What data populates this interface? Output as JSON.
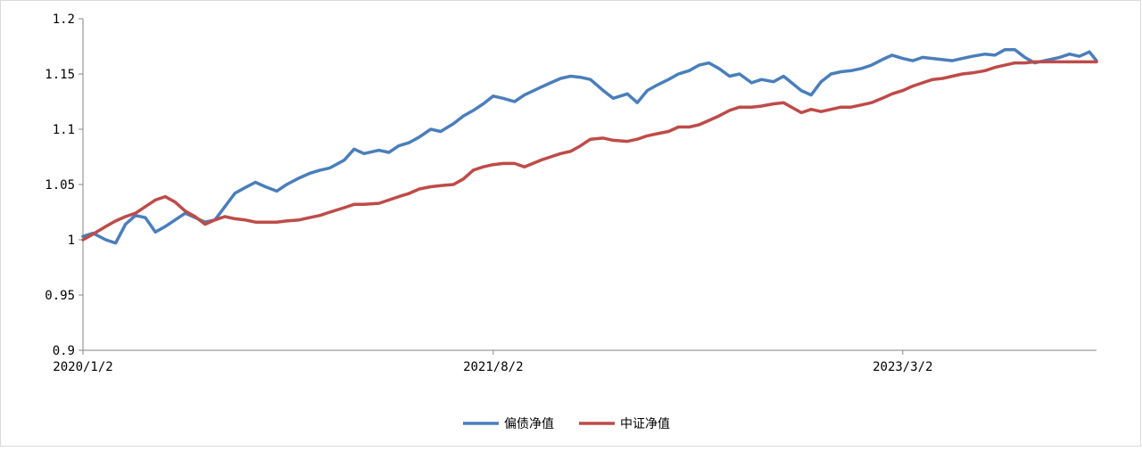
{
  "chart_data": {
    "type": "line",
    "title": "",
    "xlabel": "",
    "ylabel": "",
    "ylim": [
      0.9,
      1.2
    ],
    "y_ticks": [
      0.9,
      0.95,
      1,
      1.05,
      1.1,
      1.15,
      1.2
    ],
    "y_tick_labels": [
      "0.9",
      "0.95",
      "1",
      "1.05",
      "1.1",
      "1.15",
      "1.2"
    ],
    "x_tick_labels": [
      "2020/1/2",
      "2021/8/2",
      "2023/3/2"
    ],
    "x_range": [
      "2020/1/2",
      "2023/11/30"
    ],
    "grid": false,
    "legend_position": "bottom",
    "series": [
      {
        "name": "偏债净值",
        "color": "#4a7ebb",
        "x": [
          "2020/1/2",
          "2020/1/16",
          "2020/2/3",
          "2020/2/17",
          "2020/3/2",
          "2020/3/16",
          "2020/3/30",
          "2020/4/13",
          "2020/4/27",
          "2020/5/11",
          "2020/5/25",
          "2020/6/8",
          "2020/6/22",
          "2020/7/6",
          "2020/7/20",
          "2020/8/3",
          "2020/8/17",
          "2020/9/1",
          "2020/9/15",
          "2020/10/1",
          "2020/10/15",
          "2020/11/2",
          "2020/11/16",
          "2020/12/1",
          "2020/12/15",
          "2021/1/4",
          "2021/1/18",
          "2021/2/1",
          "2021/2/22",
          "2021/3/8",
          "2021/3/22",
          "2021/4/6",
          "2021/4/20",
          "2021/5/6",
          "2021/5/20",
          "2021/6/7",
          "2021/6/21",
          "2021/7/5",
          "2021/7/19",
          "2021/8/2",
          "2021/8/16",
          "2021/9/1",
          "2021/9/15",
          "2021/10/8",
          "2021/10/22",
          "2021/11/5",
          "2021/11/19",
          "2021/12/3",
          "2021/12/17",
          "2022/1/4",
          "2022/1/18",
          "2022/2/7",
          "2022/2/21",
          "2022/3/7",
          "2022/3/21",
          "2022/4/6",
          "2022/4/20",
          "2022/5/5",
          "2022/5/19",
          "2022/6/2",
          "2022/6/16",
          "2022/7/1",
          "2022/7/15",
          "2022/8/1",
          "2022/8/15",
          "2022/9/1",
          "2022/9/15",
          "2022/10/10",
          "2022/10/24",
          "2022/11/7",
          "2022/11/21",
          "2022/12/5",
          "2022/12/19",
          "2023/1/3",
          "2023/1/17",
          "2023/2/1",
          "2023/2/15",
          "2023/3/2",
          "2023/3/16",
          "2023/3/30",
          "2023/4/13",
          "2023/4/27",
          "2023/5/11",
          "2023/5/25",
          "2023/6/8",
          "2023/6/26",
          "2023/7/10",
          "2023/7/24",
          "2023/8/7",
          "2023/8/21",
          "2023/9/4",
          "2023/9/18",
          "2023/10/9",
          "2023/10/23",
          "2023/11/6",
          "2023/11/20",
          "2023/11/30"
        ],
        "values": [
          1.003,
          1.006,
          1.0,
          0.997,
          1.014,
          1.022,
          1.02,
          1.007,
          1.012,
          1.018,
          1.024,
          1.02,
          1.016,
          1.018,
          1.03,
          1.042,
          1.047,
          1.052,
          1.048,
          1.044,
          1.05,
          1.056,
          1.06,
          1.063,
          1.065,
          1.072,
          1.082,
          1.078,
          1.081,
          1.079,
          1.085,
          1.088,
          1.093,
          1.1,
          1.098,
          1.105,
          1.112,
          1.117,
          1.123,
          1.13,
          1.128,
          1.125,
          1.131,
          1.138,
          1.142,
          1.146,
          1.148,
          1.147,
          1.145,
          1.135,
          1.128,
          1.132,
          1.124,
          1.135,
          1.14,
          1.145,
          1.15,
          1.153,
          1.158,
          1.16,
          1.155,
          1.148,
          1.15,
          1.142,
          1.145,
          1.143,
          1.148,
          1.135,
          1.131,
          1.143,
          1.15,
          1.152,
          1.153,
          1.155,
          1.158,
          1.163,
          1.167,
          1.164,
          1.162,
          1.165,
          1.164,
          1.163,
          1.162,
          1.164,
          1.166,
          1.168,
          1.167,
          1.172,
          1.172,
          1.165,
          1.16,
          1.162,
          1.165,
          1.168,
          1.166,
          1.17,
          1.162
        ]
      },
      {
        "name": "中证净值",
        "color": "#be4b48",
        "x": [
          "2020/1/2",
          "2020/1/16",
          "2020/2/3",
          "2020/2/17",
          "2020/3/2",
          "2020/3/16",
          "2020/3/30",
          "2020/4/13",
          "2020/4/27",
          "2020/5/11",
          "2020/5/25",
          "2020/6/8",
          "2020/6/22",
          "2020/7/6",
          "2020/7/20",
          "2020/8/3",
          "2020/8/17",
          "2020/9/1",
          "2020/9/15",
          "2020/10/1",
          "2020/10/15",
          "2020/11/2",
          "2020/11/16",
          "2020/12/1",
          "2020/12/15",
          "2021/1/4",
          "2021/1/18",
          "2021/2/1",
          "2021/2/22",
          "2021/3/8",
          "2021/3/22",
          "2021/4/6",
          "2021/4/20",
          "2021/5/6",
          "2021/5/20",
          "2021/6/7",
          "2021/6/21",
          "2021/7/5",
          "2021/7/19",
          "2021/8/2",
          "2021/8/16",
          "2021/9/1",
          "2021/9/15",
          "2021/10/8",
          "2021/10/22",
          "2021/11/5",
          "2021/11/19",
          "2021/12/3",
          "2021/12/17",
          "2022/1/4",
          "2022/1/18",
          "2022/2/7",
          "2022/2/21",
          "2022/3/7",
          "2022/3/21",
          "2022/4/6",
          "2022/4/20",
          "2022/5/5",
          "2022/5/19",
          "2022/6/2",
          "2022/6/16",
          "2022/7/1",
          "2022/7/15",
          "2022/8/1",
          "2022/8/15",
          "2022/9/1",
          "2022/9/15",
          "2022/10/10",
          "2022/10/24",
          "2022/11/7",
          "2022/11/21",
          "2022/12/5",
          "2022/12/19",
          "2023/1/3",
          "2023/1/17",
          "2023/2/1",
          "2023/2/15",
          "2023/3/2",
          "2023/3/16",
          "2023/3/30",
          "2023/4/13",
          "2023/4/27",
          "2023/5/11",
          "2023/5/25",
          "2023/6/8",
          "2023/6/26",
          "2023/7/10",
          "2023/7/24",
          "2023/8/7",
          "2023/8/21",
          "2023/9/4",
          "2023/9/18",
          "2023/10/9",
          "2023/10/23",
          "2023/11/6",
          "2023/11/20",
          "2023/11/30"
        ],
        "values": [
          1.0,
          1.005,
          1.012,
          1.017,
          1.021,
          1.024,
          1.03,
          1.036,
          1.039,
          1.034,
          1.026,
          1.021,
          1.014,
          1.018,
          1.021,
          1.019,
          1.018,
          1.016,
          1.016,
          1.016,
          1.017,
          1.018,
          1.02,
          1.022,
          1.025,
          1.029,
          1.032,
          1.032,
          1.033,
          1.036,
          1.039,
          1.042,
          1.046,
          1.048,
          1.049,
          1.05,
          1.055,
          1.063,
          1.066,
          1.068,
          1.069,
          1.069,
          1.066,
          1.072,
          1.075,
          1.078,
          1.08,
          1.085,
          1.091,
          1.092,
          1.09,
          1.089,
          1.091,
          1.094,
          1.096,
          1.098,
          1.102,
          1.102,
          1.104,
          1.108,
          1.112,
          1.117,
          1.12,
          1.12,
          1.121,
          1.123,
          1.124,
          1.115,
          1.118,
          1.116,
          1.118,
          1.12,
          1.12,
          1.122,
          1.124,
          1.128,
          1.132,
          1.135,
          1.139,
          1.142,
          1.145,
          1.146,
          1.148,
          1.15,
          1.151,
          1.153,
          1.156,
          1.158,
          1.16,
          1.16,
          1.161,
          1.161,
          1.161,
          1.161,
          1.161,
          1.161,
          1.161
        ]
      }
    ]
  }
}
